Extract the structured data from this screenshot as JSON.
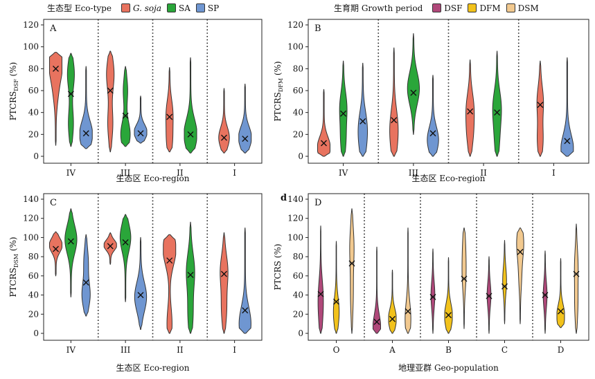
{
  "legend_top_left": {
    "title": "生态型 Eco-type",
    "items": [
      {
        "label": "G. soja",
        "color": "#e8735f",
        "italic": true
      },
      {
        "label": "SA",
        "color": "#2aa63a",
        "italic": false
      },
      {
        "label": "SP",
        "color": "#6f96d1",
        "italic": false
      }
    ]
  },
  "legend_top_right": {
    "title": "生育期 Growth period",
    "items": [
      {
        "label": "DSF",
        "color": "#b0487a",
        "italic": false
      },
      {
        "label": "DFM",
        "color": "#f2c21b",
        "italic": false
      },
      {
        "label": "DSM",
        "color": "#f2c98f",
        "italic": false
      }
    ]
  },
  "chart_data": [
    {
      "panel": "A",
      "type": "violin",
      "xlabel": "生态区 Eco-region",
      "ylabel_main": "PTCRS",
      "ylabel_sub": "DSF",
      "ylabel_unit": "(%)",
      "ylim": [
        0,
        120
      ],
      "yticks": [
        0,
        20,
        40,
        60,
        80,
        100,
        120
      ],
      "categories": [
        "IV",
        "III",
        "II",
        "I"
      ],
      "groups": [
        {
          "category": "IV",
          "violins": [
            {
              "series": "G. soja",
              "mean": 80,
              "min": 10,
              "max": 95,
              "peaks": [
                [
                  85,
                  1.0
                ],
                [
                  60,
                  0.3
                ]
              ]
            },
            {
              "series": "SA",
              "mean": 57,
              "min": 9,
              "max": 94,
              "peaks": [
                [
                  75,
                  0.5
                ],
                [
                  30,
                  0.35
                ]
              ]
            },
            {
              "series": "SP",
              "mean": 21,
              "min": 7,
              "max": 82,
              "peaks": [
                [
                  20,
                  1.0
                ]
              ]
            }
          ]
        },
        {
          "category": "III",
          "violins": [
            {
              "series": "G. soja",
              "mean": 60,
              "min": 4,
              "max": 96,
              "peaks": [
                [
                  75,
                  0.55
                ],
                [
                  30,
                  0.35
                ]
              ]
            },
            {
              "series": "SA",
              "mean": 37,
              "min": 9,
              "max": 82,
              "peaks": [
                [
                  20,
                  0.7
                ],
                [
                  60,
                  0.3
                ]
              ]
            },
            {
              "series": "SP",
              "mean": 21,
              "min": 12,
              "max": 55,
              "peaks": [
                [
                  22,
                  1.0
                ]
              ]
            }
          ]
        },
        {
          "category": "II",
          "violins": [
            {
              "series": "G. soja",
              "mean": 36,
              "min": 4,
              "max": 81,
              "peaks": [
                [
                  40,
                  0.45
                ],
                [
                  15,
                  0.4
                ]
              ]
            },
            {
              "series": "SA",
              "mean": 20,
              "min": 3,
              "max": 90,
              "peaks": [
                [
                  20,
                  1.0
                ]
              ]
            }
          ]
        },
        {
          "category": "I",
          "violins": [
            {
              "series": "G. soja",
              "mean": 17,
              "min": 3,
              "max": 62,
              "peaks": [
                [
                  17,
                  0.8
                ]
              ]
            },
            {
              "series": "SP",
              "mean": 16,
              "min": 3,
              "max": 66,
              "peaks": [
                [
                  17,
                  1.0
                ]
              ]
            }
          ]
        }
      ]
    },
    {
      "panel": "B",
      "type": "violin",
      "xlabel": "生态区 Eco-region",
      "ylabel_main": "PTCRS",
      "ylabel_sub": "DFM",
      "ylabel_unit": "(%)",
      "ylim": [
        0,
        120
      ],
      "yticks": [
        0,
        20,
        40,
        60,
        80,
        100,
        120
      ],
      "categories": [
        "IV",
        "III",
        "II",
        "I"
      ],
      "groups": [
        {
          "category": "IV",
          "violins": [
            {
              "series": "G. soja",
              "mean": 12,
              "min": 0,
              "max": 61,
              "peaks": [
                [
                  8,
                  1.0
                ]
              ]
            },
            {
              "series": "SA",
              "mean": 39,
              "min": 0,
              "max": 87,
              "peaks": [
                [
                  45,
                  0.5
                ],
                [
                  15,
                  0.35
                ]
              ]
            },
            {
              "series": "SP",
              "mean": 32,
              "min": 0,
              "max": 85,
              "peaks": [
                [
                  30,
                  0.5
                ],
                [
                  10,
                  0.4
                ]
              ]
            }
          ]
        },
        {
          "category": "III",
          "violins": [
            {
              "series": "G. soja",
              "mean": 33,
              "min": 0,
              "max": 99,
              "peaks": [
                [
                  30,
                  0.45
                ],
                [
                  10,
                  0.3
                ]
              ]
            },
            {
              "series": "SA",
              "mean": 58,
              "min": 20,
              "max": 112,
              "peaks": [
                [
                  62,
                  0.9
                ]
              ]
            },
            {
              "series": "SP",
              "mean": 21,
              "min": 0,
              "max": 74,
              "peaks": [
                [
                  15,
                  0.85
                ]
              ]
            }
          ]
        },
        {
          "category": "II",
          "violins": [
            {
              "series": "G. soja",
              "mean": 41,
              "min": 0,
              "max": 88,
              "peaks": [
                [
                  45,
                  0.5
                ],
                [
                  20,
                  0.4
                ]
              ]
            },
            {
              "series": "SA",
              "mean": 40,
              "min": 0,
              "max": 96,
              "peaks": [
                [
                  45,
                  0.6
                ],
                [
                  15,
                  0.3
                ]
              ]
            }
          ]
        },
        {
          "category": "I",
          "violins": [
            {
              "series": "G. soja",
              "mean": 47,
              "min": 0,
              "max": 87,
              "peaks": [
                [
                  50,
                  0.45
                ],
                [
                  15,
                  0.4
                ]
              ]
            },
            {
              "series": "SP",
              "mean": 14,
              "min": 0,
              "max": 90,
              "peaks": [
                [
                  5,
                  1.0
                ]
              ]
            }
          ]
        }
      ]
    },
    {
      "panel": "C",
      "type": "violin",
      "xlabel": "生态区 Eco-region",
      "ylabel_main": "PTCRS",
      "ylabel_sub": "DSM",
      "ylabel_unit": "(%)",
      "ylim": [
        0,
        140
      ],
      "yticks": [
        0,
        20,
        40,
        60,
        80,
        100,
        120,
        140
      ],
      "categories": [
        "IV",
        "III",
        "II",
        "I"
      ],
      "groups": [
        {
          "category": "IV",
          "violins": [
            {
              "series": "G. soja",
              "mean": 88,
              "min": 60,
              "max": 106,
              "peaks": [
                [
                  92,
                  1.0
                ]
              ]
            },
            {
              "series": "SA",
              "mean": 96,
              "min": 38,
              "max": 130,
              "peaks": [
                [
                  98,
                  0.9
                ]
              ]
            },
            {
              "series": "SP",
              "mean": 53,
              "min": 18,
              "max": 103,
              "peaks": [
                [
                  40,
                  0.6
                ],
                [
                  75,
                  0.3
                ]
              ]
            }
          ]
        },
        {
          "category": "III",
          "violins": [
            {
              "series": "G. soja",
              "mean": 91,
              "min": 72,
              "max": 105,
              "peaks": [
                [
                  92,
                  1.0
                ]
              ]
            },
            {
              "series": "SA",
              "mean": 95,
              "min": 33,
              "max": 124,
              "peaks": [
                [
                  100,
                  0.8
                ]
              ]
            },
            {
              "series": "SP",
              "mean": 40,
              "min": 4,
              "max": 100,
              "peaks": [
                [
                  38,
                  0.9
                ]
              ]
            }
          ]
        },
        {
          "category": "II",
          "violins": [
            {
              "series": "G. soja",
              "mean": 76,
              "min": 0,
              "max": 103,
              "peaks": [
                [
                  88,
                  1.0
                ],
                [
                  10,
                  0.35
                ]
              ]
            },
            {
              "series": "SA",
              "mean": 61,
              "min": 0,
              "max": 116,
              "peaks": [
                [
                  65,
                  0.6
                ],
                [
                  20,
                  0.35
                ]
              ]
            }
          ]
        },
        {
          "category": "I",
          "violins": [
            {
              "series": "G. soja",
              "mean": 62,
              "min": 0,
              "max": 105,
              "peaks": [
                [
                  65,
                  0.55
                ],
                [
                  25,
                  0.35
                ]
              ]
            },
            {
              "series": "SP",
              "mean": 24,
              "min": 0,
              "max": 110,
              "peaks": [
                [
                  10,
                  0.9
                ]
              ]
            }
          ]
        }
      ]
    },
    {
      "panel": "D",
      "tag": "d",
      "type": "violin",
      "xlabel": "地理亚群 Geo-population",
      "ylabel_main": "PTCRS",
      "ylabel_sub": "",
      "ylabel_unit": "(%)",
      "ylim": [
        0,
        140
      ],
      "yticks": [
        0,
        20,
        40,
        60,
        80,
        100,
        120,
        140
      ],
      "categories": [
        "O",
        "A",
        "B",
        "C",
        "D"
      ],
      "groups": [
        {
          "category": "O",
          "violins": [
            {
              "series": "DSF",
              "mean": 41,
              "min": 0,
              "max": 112,
              "peaks": [
                [
                  40,
                  0.5
                ],
                [
                  15,
                  0.3
                ]
              ]
            },
            {
              "series": "DFM",
              "mean": 33,
              "min": 0,
              "max": 96,
              "peaks": [
                [
                  22,
                  0.7
                ]
              ]
            },
            {
              "series": "DSM",
              "mean": 73,
              "min": 0,
              "max": 130,
              "peaks": [
                [
                  90,
                  0.5
                ],
                [
                  40,
                  0.3
                ]
              ]
            }
          ]
        },
        {
          "category": "A",
          "violins": [
            {
              "series": "DSF",
              "mean": 12,
              "min": 0,
              "max": 90,
              "peaks": [
                [
                  5,
                  1.0
                ]
              ]
            },
            {
              "series": "DFM",
              "mean": 15,
              "min": 0,
              "max": 66,
              "peaks": [
                [
                  15,
                  1.0
                ]
              ]
            },
            {
              "series": "DSM",
              "mean": 23,
              "min": 0,
              "max": 110,
              "peaks": [
                [
                  15,
                  0.7
                ]
              ]
            }
          ]
        },
        {
          "category": "B",
          "violins": [
            {
              "series": "DSF",
              "mean": 38,
              "min": 0,
              "max": 88,
              "peaks": [
                [
                  40,
                  0.45
                ]
              ]
            },
            {
              "series": "DFM",
              "mean": 19,
              "min": 0,
              "max": 79,
              "peaks": [
                [
                  18,
                  1.0
                ]
              ]
            },
            {
              "series": "DSM",
              "mean": 57,
              "min": 5,
              "max": 110,
              "peaks": [
                [
                  60,
                  0.4
                ],
                [
                  90,
                  0.3
                ]
              ]
            }
          ]
        },
        {
          "category": "C",
          "violins": [
            {
              "series": "DSF",
              "mean": 39,
              "min": 0,
              "max": 80,
              "peaks": [
                [
                  40,
                  0.45
                ]
              ]
            },
            {
              "series": "DFM",
              "mean": 49,
              "min": 10,
              "max": 97,
              "peaks": [
                [
                  55,
                  0.45
                ]
              ]
            },
            {
              "series": "DSM",
              "mean": 85,
              "min": 10,
              "max": 110,
              "peaks": [
                [
                  95,
                  0.85
                ],
                [
                  60,
                  0.3
                ]
              ]
            }
          ]
        },
        {
          "category": "D",
          "violins": [
            {
              "series": "DSF",
              "mean": 40,
              "min": 0,
              "max": 86,
              "peaks": [
                [
                  40,
                  0.45
                ]
              ]
            },
            {
              "series": "DFM",
              "mean": 23,
              "min": 6,
              "max": 78,
              "peaks": [
                [
                  18,
                  1.0
                ]
              ]
            },
            {
              "series": "DSM",
              "mean": 62,
              "min": 0,
              "max": 114,
              "peaks": [
                [
                  70,
                  0.4
                ],
                [
                  30,
                  0.35
                ]
              ]
            }
          ]
        }
      ]
    }
  ]
}
